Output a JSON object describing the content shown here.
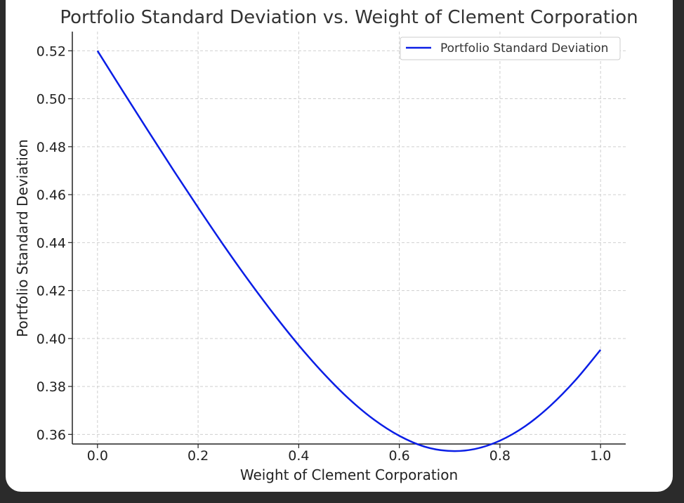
{
  "chart_data": {
    "type": "line",
    "title": "Portfolio Standard Deviation vs. Weight of Clement Corporation",
    "xlabel": "Weight of Clement Corporation",
    "ylabel": "Portfolio Standard Deviation",
    "xlim": [
      -0.05,
      1.05
    ],
    "ylim": [
      0.356,
      0.528
    ],
    "xticks": [
      0.0,
      0.2,
      0.4,
      0.6,
      0.8,
      1.0
    ],
    "xtick_labels": [
      "0.0",
      "0.2",
      "0.4",
      "0.6",
      "0.8",
      "1.0"
    ],
    "yticks": [
      0.36,
      0.38,
      0.4,
      0.42,
      0.44,
      0.46,
      0.48,
      0.5,
      0.52
    ],
    "ytick_labels": [
      "0.36",
      "0.38",
      "0.40",
      "0.42",
      "0.44",
      "0.46",
      "0.48",
      "0.50",
      "0.52"
    ],
    "grid": true,
    "legend_position": "top-right",
    "series": [
      {
        "name": "Portfolio Standard Deviation",
        "color": "#0a1ee6",
        "x": [
          0.0,
          0.05,
          0.1,
          0.15,
          0.2,
          0.25,
          0.3,
          0.35,
          0.4,
          0.45,
          0.5,
          0.55,
          0.6,
          0.65,
          0.7,
          0.75,
          0.8,
          0.85,
          0.9,
          0.95,
          1.0
        ],
        "y": [
          0.52,
          0.5033,
          0.4868,
          0.4705,
          0.4546,
          0.4391,
          0.4243,
          0.4103,
          0.3972,
          0.3853,
          0.3748,
          0.3661,
          0.3594,
          0.3549,
          0.3531,
          0.3539,
          0.3574,
          0.3634,
          0.3719,
          0.3826,
          0.3953
        ]
      }
    ]
  }
}
